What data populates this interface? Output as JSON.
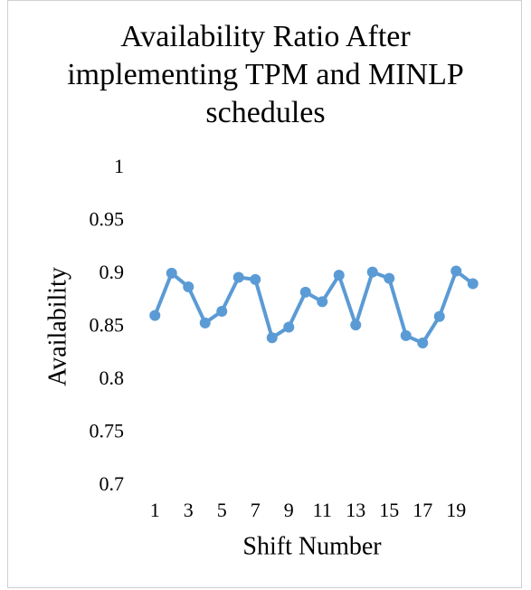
{
  "chart_data": {
    "type": "line",
    "title": "Availability Ratio After implementing TPM and MINLP schedules",
    "x_label": "Shift Number",
    "y_label": "Availability",
    "categories": [
      "1",
      null,
      "3",
      null,
      "5",
      null,
      "7",
      null,
      "9",
      null,
      "11",
      null,
      "13",
      null,
      "15",
      null,
      "17",
      null,
      "19",
      null
    ],
    "series": [
      {
        "name": "Availability",
        "color": "#5b9bd5",
        "values": [
          0.861,
          0.901,
          0.888,
          0.854,
          0.865,
          0.897,
          0.895,
          0.84,
          0.85,
          0.883,
          0.874,
          0.899,
          0.852,
          0.902,
          0.896,
          0.842,
          0.835,
          0.86,
          0.903,
          0.891
        ]
      }
    ],
    "ylim": [
      0.7,
      1
    ],
    "yticks": [
      0.7,
      0.75,
      0.8,
      0.85,
      0.9,
      0.95,
      1
    ],
    "grid": false
  }
}
